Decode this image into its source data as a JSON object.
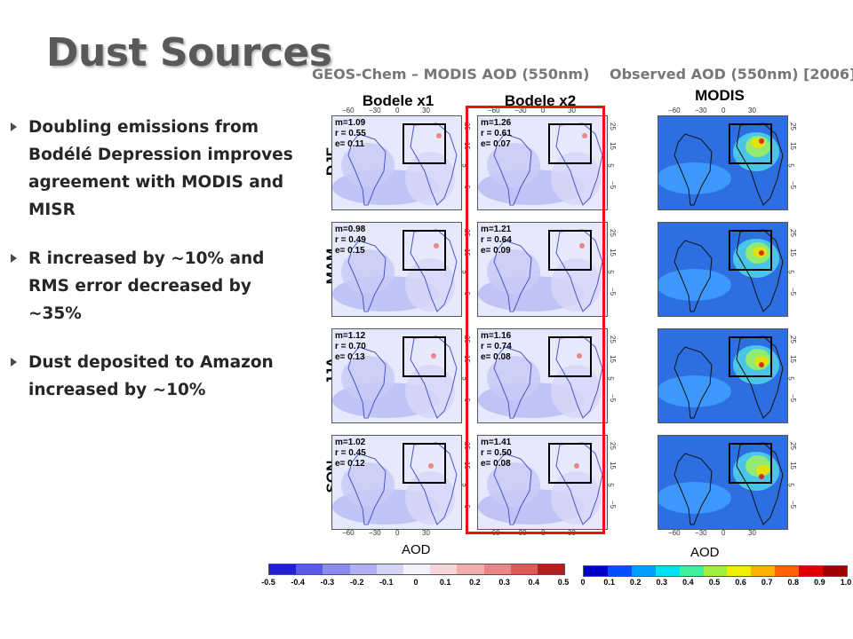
{
  "title": "Dust Sources",
  "headers": {
    "left": "GEOS-Chem – MODIS AOD (550nm)",
    "right": "Observed AOD (550nm) [2006]"
  },
  "columns": [
    "Bodele x1",
    "Bodele x2",
    "MODIS"
  ],
  "seasons": [
    "DJF",
    "MAM",
    "JJA",
    "SON"
  ],
  "bullets": [
    "Doubling emissions from Bodélé Depression improves agreement with MODIS and MISR",
    "R increased by ~10% and RMS error decreased by ~35%",
    "Dust deposited to Amazon increased by ~10%"
  ],
  "stats": {
    "x1": [
      {
        "m": "m=1.09",
        "r": "r = 0.55",
        "e": "e= 0.11"
      },
      {
        "m": "m=0.98",
        "r": "r = 0.49",
        "e": "e= 0.15"
      },
      {
        "m": "m=1.12",
        "r": "r = 0.70",
        "e": "e= 0.13"
      },
      {
        "m": "m=1.02",
        "r": "r = 0.45",
        "e": "e= 0.12"
      }
    ],
    "x2": [
      {
        "m": "m=1.26",
        "r": "r = 0.61",
        "e": "e= 0.07"
      },
      {
        "m": "m=1.21",
        "r": "r = 0.64",
        "e": "e= 0.09"
      },
      {
        "m": "m=1.16",
        "r": "r = 0.74",
        "e": "e= 0.08"
      },
      {
        "m": "m=1.41",
        "r": "r = 0.50",
        "e": "e= 0.08"
      }
    ]
  },
  "axis_ticks": {
    "lon": [
      "−60",
      "−30",
      "0",
      "30"
    ],
    "lat": [
      "25",
      "15",
      "5",
      "−5"
    ]
  },
  "aod_label": "AOD",
  "diff_colorbar": {
    "ticks": [
      "-0.5",
      "-0.4",
      "-0.3",
      "-0.2",
      "-0.1",
      "0",
      "0.1",
      "0.2",
      "0.3",
      "0.4",
      "0.5"
    ],
    "colors": [
      "#1f1fd6",
      "#5a5ae8",
      "#8a8aef",
      "#b0b0f4",
      "#d4d4f8",
      "#f2f2fc",
      "#f8d6d6",
      "#f2aeae",
      "#ea8585",
      "#dd5a5a",
      "#b02020"
    ]
  },
  "aod_colorbar": {
    "ticks": [
      "0",
      "0.1",
      "0.2",
      "0.3",
      "0.4",
      "0.5",
      "0.6",
      "0.7",
      "0.8",
      "0.9",
      "1.0"
    ],
    "colors": [
      "#0000c8",
      "#0050ff",
      "#00a0ff",
      "#00e0f0",
      "#40f0a0",
      "#a0f040",
      "#f0f000",
      "#ffb000",
      "#ff6000",
      "#e00000",
      "#a00000"
    ]
  }
}
